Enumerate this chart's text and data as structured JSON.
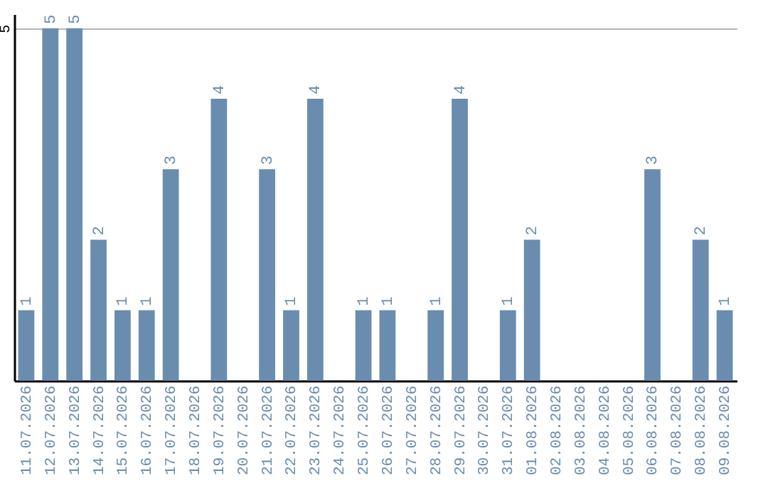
{
  "chart_data": {
    "type": "bar",
    "categories": [
      "11.07.2026",
      "12.07.2026",
      "13.07.2026",
      "14.07.2026",
      "15.07.2026",
      "16.07.2026",
      "17.07.2026",
      "18.07.2026",
      "19.07.2026",
      "20.07.2026",
      "21.07.2026",
      "22.07.2026",
      "23.07.2026",
      "24.07.2026",
      "25.07.2026",
      "26.07.2026",
      "27.07.2026",
      "28.07.2026",
      "29.07.2026",
      "30.07.2026",
      "31.07.2026",
      "01.08.2026",
      "02.08.2026",
      "03.08.2026",
      "04.08.2026",
      "05.08.2026",
      "06.08.2026",
      "07.08.2026",
      "08.08.2026",
      "09.08.2026"
    ],
    "values": [
      1,
      5,
      5,
      2,
      1,
      1,
      3,
      0,
      4,
      0,
      3,
      1,
      4,
      0,
      1,
      1,
      0,
      1,
      4,
      0,
      1,
      2,
      0,
      0,
      0,
      0,
      3,
      0,
      2,
      1
    ],
    "value_labels": [
      "1",
      "5",
      "5",
      "2",
      "1",
      "1",
      "3",
      null,
      "4",
      null,
      "3",
      "1",
      "4",
      null,
      "1",
      "1",
      null,
      "1",
      "4",
      null,
      "1",
      "2",
      null,
      null,
      null,
      null,
      "3",
      null,
      "2",
      "1"
    ],
    "color": "#6a8caf",
    "ylim": [
      0,
      5.2
    ],
    "yticks": [
      5
    ],
    "grid": "y"
  }
}
